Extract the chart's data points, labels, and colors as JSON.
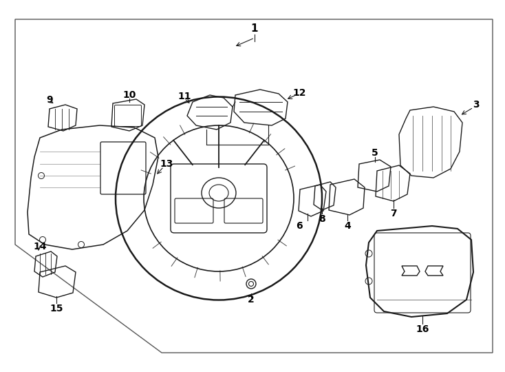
{
  "background_color": "#ffffff",
  "line_color": "#1a1a1a",
  "text_color": "#000000",
  "fig_width": 7.34,
  "fig_height": 5.4,
  "dpi": 100
}
